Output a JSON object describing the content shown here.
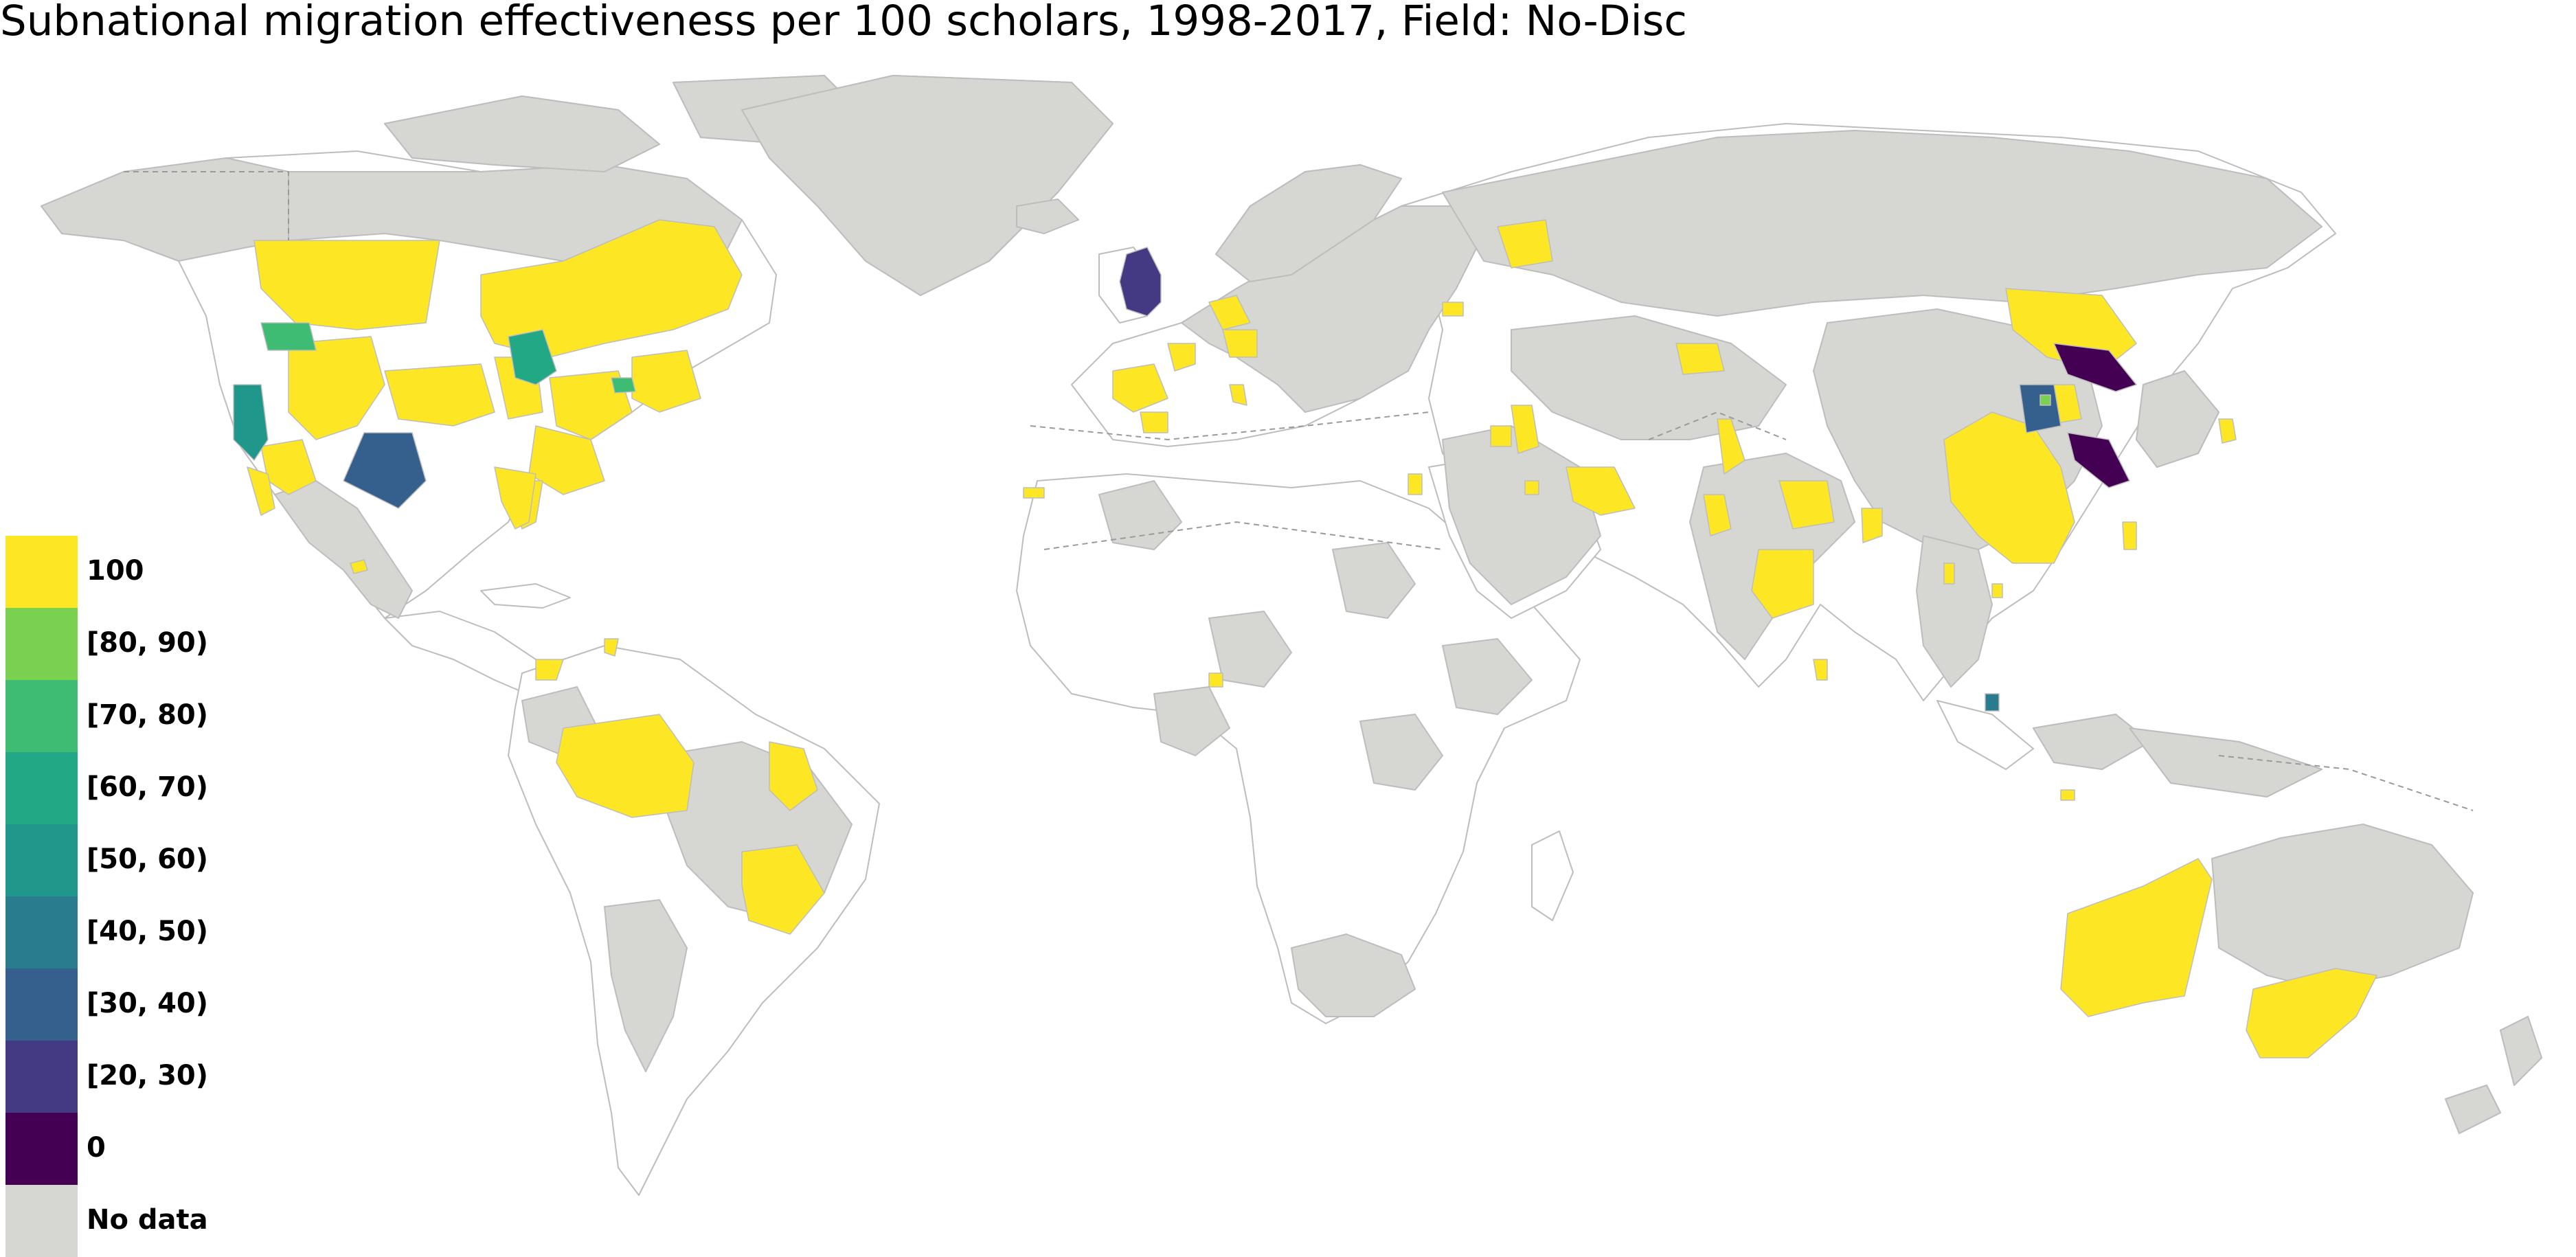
{
  "title": "Subnational migration effectiveness per 100 scholars, 1998-2017, Field: No-Disc",
  "colors": {
    "nodata": "#d6d6d3",
    "border": "#bdbdbd",
    "dash": "#9a9a9a",
    "c100": "#fde725",
    "c80": "#7ad151",
    "c70": "#3fbc73",
    "c60": "#22a884",
    "c50": "#1f978b",
    "c40": "#297b8e",
    "c30": "#355f8d",
    "c20": "#443a83",
    "c0": "#440154"
  },
  "legend": [
    {
      "label": "100",
      "color_key": "c100"
    },
    {
      "label": "[80, 90)",
      "color_key": "c80"
    },
    {
      "label": "[70, 80)",
      "color_key": "c70"
    },
    {
      "label": "[60, 70)",
      "color_key": "c60"
    },
    {
      "label": "[50, 60)",
      "color_key": "c50"
    },
    {
      "label": "[40, 50)",
      "color_key": "c40"
    },
    {
      "label": "[30, 40)",
      "color_key": "c30"
    },
    {
      "label": "[20, 30)",
      "color_key": "c20"
    },
    {
      "label": "0",
      "color_key": "c0"
    },
    {
      "label": "No data",
      "color_key": "nodata"
    }
  ]
}
